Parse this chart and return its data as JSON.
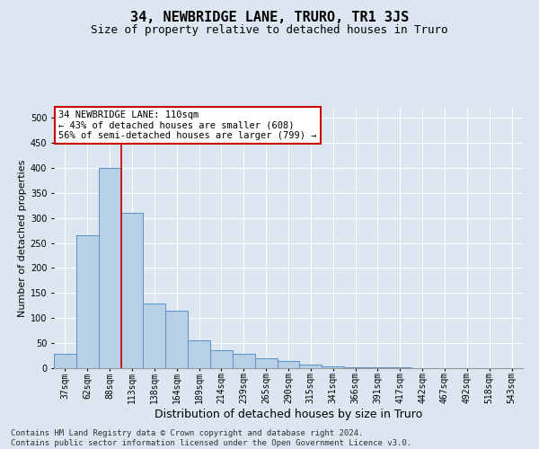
{
  "title": "34, NEWBRIDGE LANE, TRURO, TR1 3JS",
  "subtitle": "Size of property relative to detached houses in Truro",
  "xlabel": "Distribution of detached houses by size in Truro",
  "ylabel": "Number of detached properties",
  "categories": [
    "37sqm",
    "62sqm",
    "88sqm",
    "113sqm",
    "138sqm",
    "164sqm",
    "189sqm",
    "214sqm",
    "239sqm",
    "265sqm",
    "290sqm",
    "315sqm",
    "341sqm",
    "366sqm",
    "391sqm",
    "417sqm",
    "442sqm",
    "467sqm",
    "492sqm",
    "518sqm",
    "543sqm"
  ],
  "values": [
    28,
    265,
    400,
    310,
    130,
    115,
    55,
    35,
    28,
    20,
    15,
    8,
    3,
    2,
    1,
    1,
    0,
    0,
    0,
    0,
    0
  ],
  "bar_color": "#b8cfe8",
  "bar_edge_color": "#5b8fc9",
  "background_color": "#dce6f0",
  "ylim": [
    0,
    520
  ],
  "yticks": [
    0,
    50,
    100,
    150,
    200,
    250,
    300,
    350,
    400,
    450,
    500
  ],
  "property_line_color": "#cc0000",
  "annotation_text": "34 NEWBRIDGE LANE: 110sqm\n← 43% of detached houses are smaller (608)\n56% of semi-detached houses are larger (799) →",
  "annotation_box_color": "#ffffff",
  "annotation_box_edge": "#cc0000",
  "footer_line1": "Contains HM Land Registry data © Crown copyright and database right 2024.",
  "footer_line2": "Contains public sector information licensed under the Open Government Licence v3.0.",
  "title_fontsize": 11,
  "subtitle_fontsize": 9,
  "xlabel_fontsize": 9,
  "ylabel_fontsize": 8,
  "tick_fontsize": 7,
  "annotation_fontsize": 7.5,
  "footer_fontsize": 6.5
}
